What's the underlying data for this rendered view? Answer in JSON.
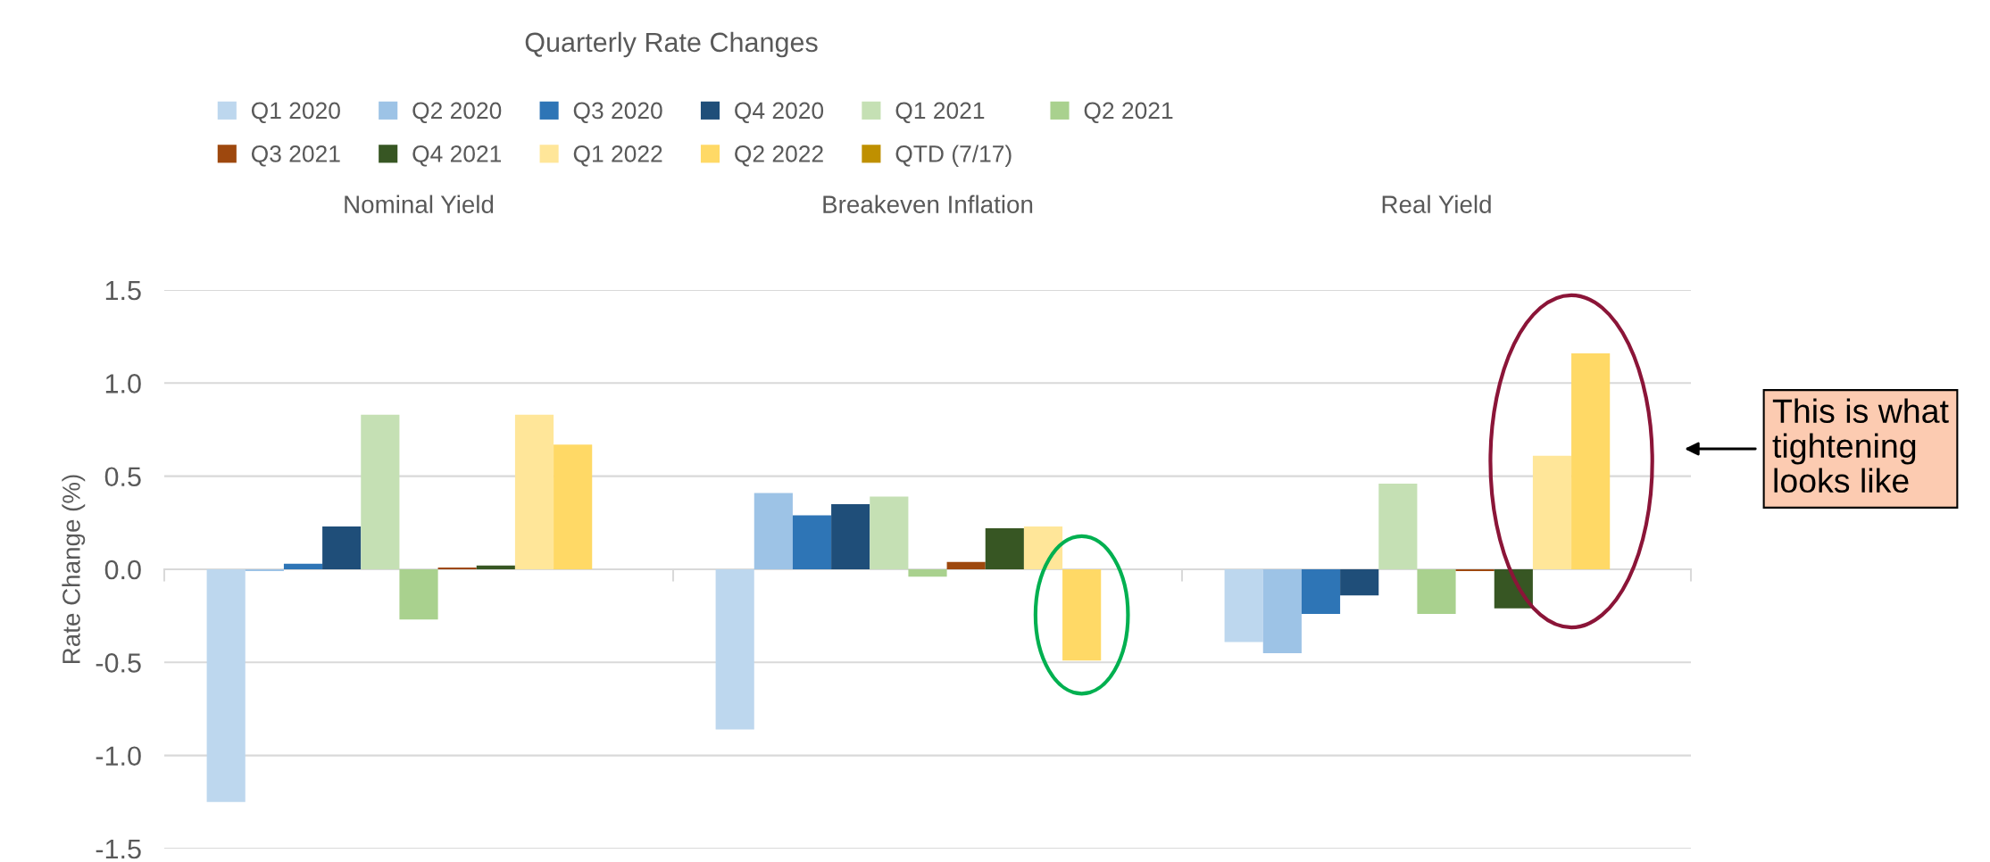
{
  "chart_data": {
    "type": "bar",
    "title": "Quarterly Rate Changes",
    "ylabel": "Rate Change (%)",
    "categories": [
      "Nominal Yield",
      "Breakeven Inflation",
      "Real Yield"
    ],
    "series": [
      {
        "name": "Q1 2020",
        "color": "#bdd7ee",
        "values": [
          -1.25,
          -0.86,
          -0.39
        ]
      },
      {
        "name": "Q2 2020",
        "color": "#9dc3e6",
        "values": [
          -0.01,
          0.41,
          -0.45
        ]
      },
      {
        "name": "Q3 2020",
        "color": "#2e75b6",
        "values": [
          0.03,
          0.29,
          -0.24
        ]
      },
      {
        "name": "Q4 2020",
        "color": "#1f4e79",
        "values": [
          0.23,
          0.35,
          -0.14
        ]
      },
      {
        "name": "Q1 2021",
        "color": "#c5e0b4",
        "values": [
          0.83,
          0.39,
          0.46
        ]
      },
      {
        "name": "Q2 2021",
        "color": "#a9d18e",
        "values": [
          -0.27,
          -0.04,
          -0.24
        ]
      },
      {
        "name": "Q3 2021",
        "color": "#9e480e",
        "values": [
          0.01,
          0.04,
          -0.01
        ]
      },
      {
        "name": "Q4 2021",
        "color": "#375623",
        "values": [
          0.02,
          0.22,
          -0.21
        ]
      },
      {
        "name": "Q1 2022",
        "color": "#ffe699",
        "values": [
          0.83,
          0.23,
          0.61
        ]
      },
      {
        "name": "Q2 2022",
        "color": "#ffd966",
        "values": [
          0.67,
          -0.49,
          1.16
        ]
      },
      {
        "name": "QTD (7/17)",
        "color": "#bf9000",
        "values": [
          null,
          null,
          null
        ]
      }
    ],
    "ylim": [
      -1.5,
      1.5
    ],
    "yticks": [
      {
        "value": -1.5,
        "label": "-1.5"
      },
      {
        "value": -1.0,
        "label": "-1.0"
      },
      {
        "value": -0.5,
        "label": "-0.5"
      },
      {
        "value": 0,
        "label": "0.0"
      },
      {
        "value": 0.5,
        "label": "0.5"
      },
      {
        "value": 1.0,
        "label": "1.0"
      },
      {
        "value": 1.5,
        "label": "1.5"
      }
    ],
    "grid": "y",
    "legend": "top",
    "annotations": [
      "This is what\ntightening\nlooks like"
    ]
  }
}
